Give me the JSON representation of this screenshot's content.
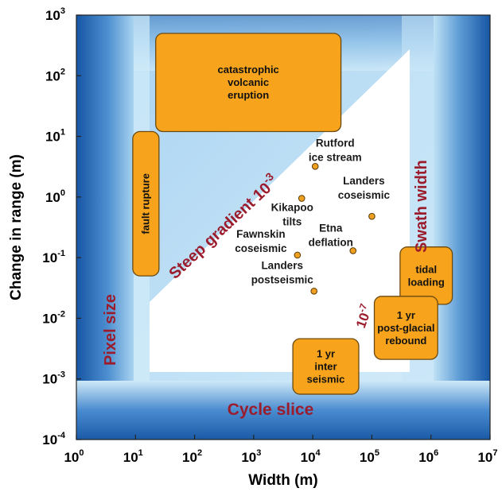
{
  "chart_data": {
    "type": "scatter",
    "xlabel": "Width (m)",
    "ylabel": "Change in range (m)",
    "x_scale": "log",
    "y_scale": "log",
    "xlim": [
      1,
      10000000
    ],
    "ylim": [
      0.0001,
      1000
    ],
    "x_ticks": [
      {
        "base": "10",
        "exp": "0",
        "value": 1
      },
      {
        "base": "10",
        "exp": "1",
        "value": 10
      },
      {
        "base": "10",
        "exp": "2",
        "value": 100
      },
      {
        "base": "10",
        "exp": "3",
        "value": 1000
      },
      {
        "base": "10",
        "exp": "4",
        "value": 10000
      },
      {
        "base": "10",
        "exp": "5",
        "value": 100000
      },
      {
        "base": "10",
        "exp": "6",
        "value": 1000000
      },
      {
        "base": "10",
        "exp": "7",
        "value": 10000000
      }
    ],
    "y_ticks": [
      {
        "base": "10",
        "exp": "-4",
        "value": 0.0001
      },
      {
        "base": "10",
        "exp": "-3",
        "value": 0.001
      },
      {
        "base": "10",
        "exp": "-2",
        "value": 0.01
      },
      {
        "base": "10",
        "exp": "-1",
        "value": 0.1
      },
      {
        "base": "10",
        "exp": "0",
        "value": 1
      },
      {
        "base": "10",
        "exp": "1",
        "value": 10
      },
      {
        "base": "10",
        "exp": "2",
        "value": 100
      },
      {
        "base": "10",
        "exp": "3",
        "value": 1000
      }
    ],
    "points": [
      {
        "lines": [
          "Rutford",
          "ice stream"
        ],
        "x": 11000,
        "y": 3.2
      },
      {
        "lines": [
          "Kikapoo",
          "tilts"
        ],
        "x": 6500,
        "y": 0.95
      },
      {
        "lines": [
          "Landers",
          "coseismic"
        ],
        "x": 100000,
        "y": 0.48
      },
      {
        "lines": [
          "Fawnskin",
          "coseismic"
        ],
        "x": 5500,
        "y": 0.11
      },
      {
        "lines": [
          "Etna",
          "deflation"
        ],
        "x": 48000,
        "y": 0.13
      },
      {
        "lines": [
          "Landers",
          "postseismic"
        ],
        "x": 10500,
        "y": 0.028
      }
    ],
    "boxes": [
      {
        "lines": [
          "catastrophic",
          "volcanic",
          "eruption"
        ],
        "x_range": [
          22,
          30000
        ],
        "y_range": [
          12,
          500
        ]
      },
      {
        "lines": [
          "fault",
          "rupture"
        ],
        "x_range": [
          9,
          25
        ],
        "y_range": [
          0.05,
          12
        ],
        "vertical": true
      },
      {
        "lines": [
          "tidal",
          "loading"
        ],
        "x_range": [
          300000,
          2300000
        ],
        "y_range": [
          0.017,
          0.15
        ]
      },
      {
        "lines": [
          "1 yr",
          "post-glacial",
          "rebound"
        ],
        "x_range": [
          110000,
          1300000
        ],
        "y_range": [
          0.0021,
          0.023
        ]
      },
      {
        "lines": [
          "1 yr",
          "inter",
          "seismic"
        ],
        "x_range": [
          4600,
          60000
        ],
        "y_range": [
          0.00056,
          0.0046
        ]
      }
    ],
    "region_labels": {
      "pixel_size": "Pixel size",
      "swath_width": "Swath width",
      "cycle_slice": "Cycle slice",
      "steep_gradient": "Steep gradient 10",
      "steep_gradient_exp": "-3",
      "shallow_gradient": "10",
      "shallow_gradient_exp": "-7"
    }
  }
}
